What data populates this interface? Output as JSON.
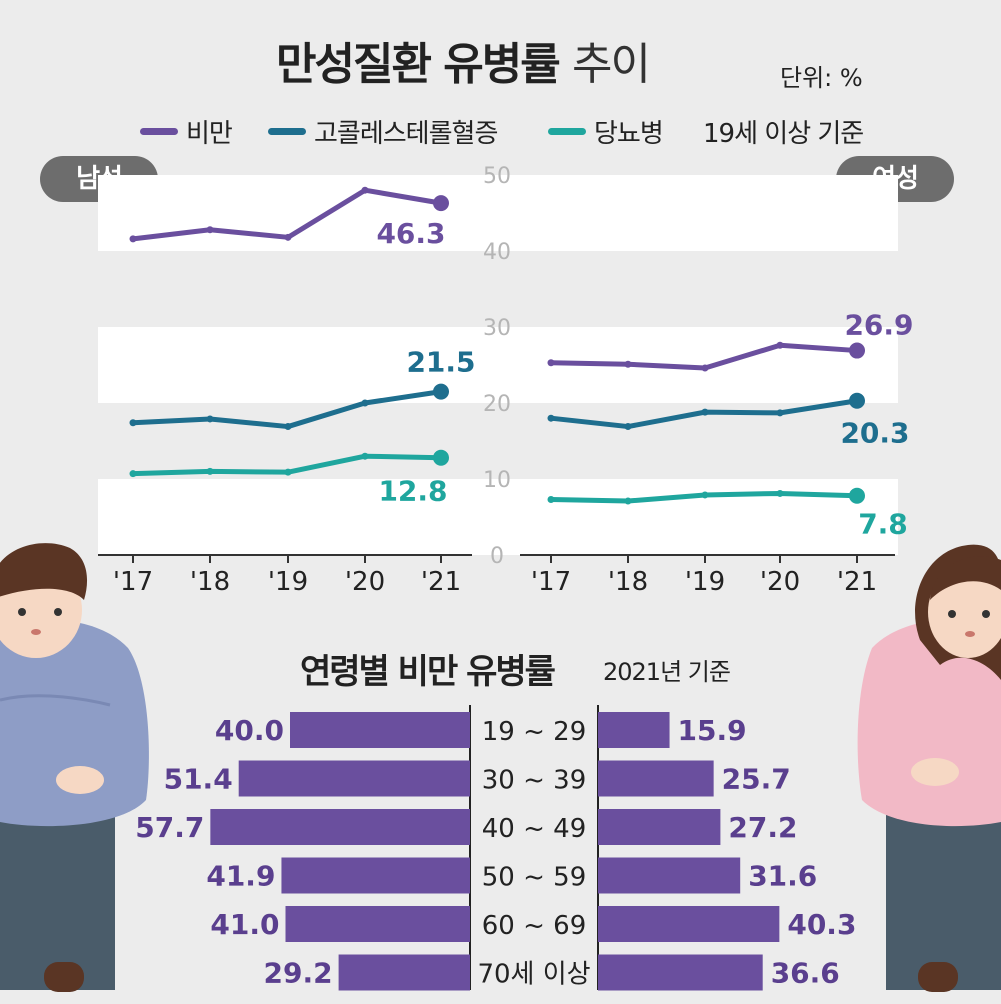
{
  "title": {
    "main": "만성질환 유병률",
    "sub": "추이"
  },
  "unit": "단위: %",
  "legend": {
    "items": [
      {
        "label": "비만",
        "color": "#6a4f9e"
      },
      {
        "label": "고콜레스테롤혈증",
        "color": "#1e6e8e"
      },
      {
        "label": "당뇨병",
        "color": "#1fa69e"
      }
    ],
    "note": "19세 이상 기준"
  },
  "panels": {
    "male": "남성",
    "female": "여성"
  },
  "age_section": {
    "title": "연령별 비만 유병률",
    "subtitle": "2021년 기준"
  },
  "chart_data": [
    {
      "type": "line",
      "title": "남성",
      "x": [
        "'17",
        "'18",
        "'19",
        "'20",
        "'21"
      ],
      "ylim": [
        0,
        50
      ],
      "yticks": [
        "0",
        "10",
        "20",
        "30",
        "40",
        "50"
      ],
      "series": [
        {
          "name": "비만",
          "color": "#6a4f9e",
          "values": [
            41.6,
            42.8,
            41.8,
            48.0,
            46.3
          ],
          "end_label": "46.3"
        },
        {
          "name": "고콜레스테롤혈증",
          "color": "#1e6e8e",
          "values": [
            17.4,
            17.9,
            16.9,
            20.0,
            21.5
          ],
          "end_label": "21.5"
        },
        {
          "name": "당뇨병",
          "color": "#1fa69e",
          "values": [
            10.7,
            11.0,
            10.9,
            13.0,
            12.8
          ],
          "end_label": "12.8"
        }
      ]
    },
    {
      "type": "line",
      "title": "여성",
      "x": [
        "'17",
        "'18",
        "'19",
        "'20",
        "'21"
      ],
      "ylim": [
        0,
        50
      ],
      "series": [
        {
          "name": "비만",
          "color": "#6a4f9e",
          "values": [
            25.3,
            25.1,
            24.6,
            27.6,
            26.9
          ],
          "end_label": "26.9"
        },
        {
          "name": "고콜레스테롤혈증",
          "color": "#1e6e8e",
          "values": [
            18.0,
            16.9,
            18.8,
            18.7,
            20.3
          ],
          "end_label": "20.3"
        },
        {
          "name": "당뇨병",
          "color": "#1fa69e",
          "values": [
            7.3,
            7.1,
            7.9,
            8.1,
            7.8
          ],
          "end_label": "7.8"
        }
      ]
    },
    {
      "type": "bar",
      "title": "연령별 비만 유병률",
      "categories": [
        "19 ~ 29",
        "30 ~ 39",
        "40 ~ 49",
        "50 ~ 59",
        "60 ~ 69",
        "70세 이상"
      ],
      "series": [
        {
          "name": "남성",
          "values": [
            40.0,
            51.4,
            57.7,
            41.9,
            41.0,
            29.2
          ],
          "labels": [
            "40.0",
            "51.4",
            "57.7",
            "41.9",
            "41.0",
            "29.2"
          ]
        },
        {
          "name": "여성",
          "values": [
            15.9,
            25.7,
            27.2,
            31.6,
            40.3,
            36.6
          ],
          "labels": [
            "15.9",
            "25.7",
            "27.2",
            "31.6",
            "40.3",
            "36.6"
          ]
        }
      ]
    }
  ]
}
